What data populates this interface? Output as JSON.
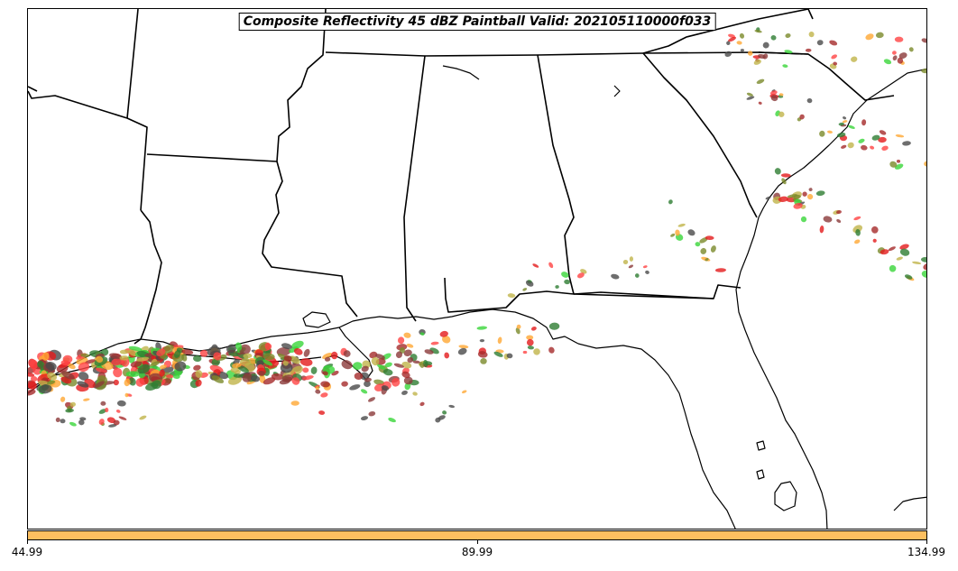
{
  "map": {
    "title": "Composite Reflectivity 45 dBZ Paintball Valid: 202105110000f033",
    "region": "Southeastern United States and northern Gulf of Mexico"
  },
  "paintball_colors": [
    "#e31a1c",
    "#ff4444",
    "#39d639",
    "#2e7d32",
    "#c0b44a",
    "#8b3a3a",
    "#ffa733",
    "#4a4a4a",
    "#7a8a2a",
    "#a52a2a"
  ],
  "colorbar": {
    "color": "#fdbf60",
    "ticks": [
      {
        "label": "44.99"
      },
      {
        "label": "89.99"
      },
      {
        "label": "134.99"
      }
    ]
  }
}
